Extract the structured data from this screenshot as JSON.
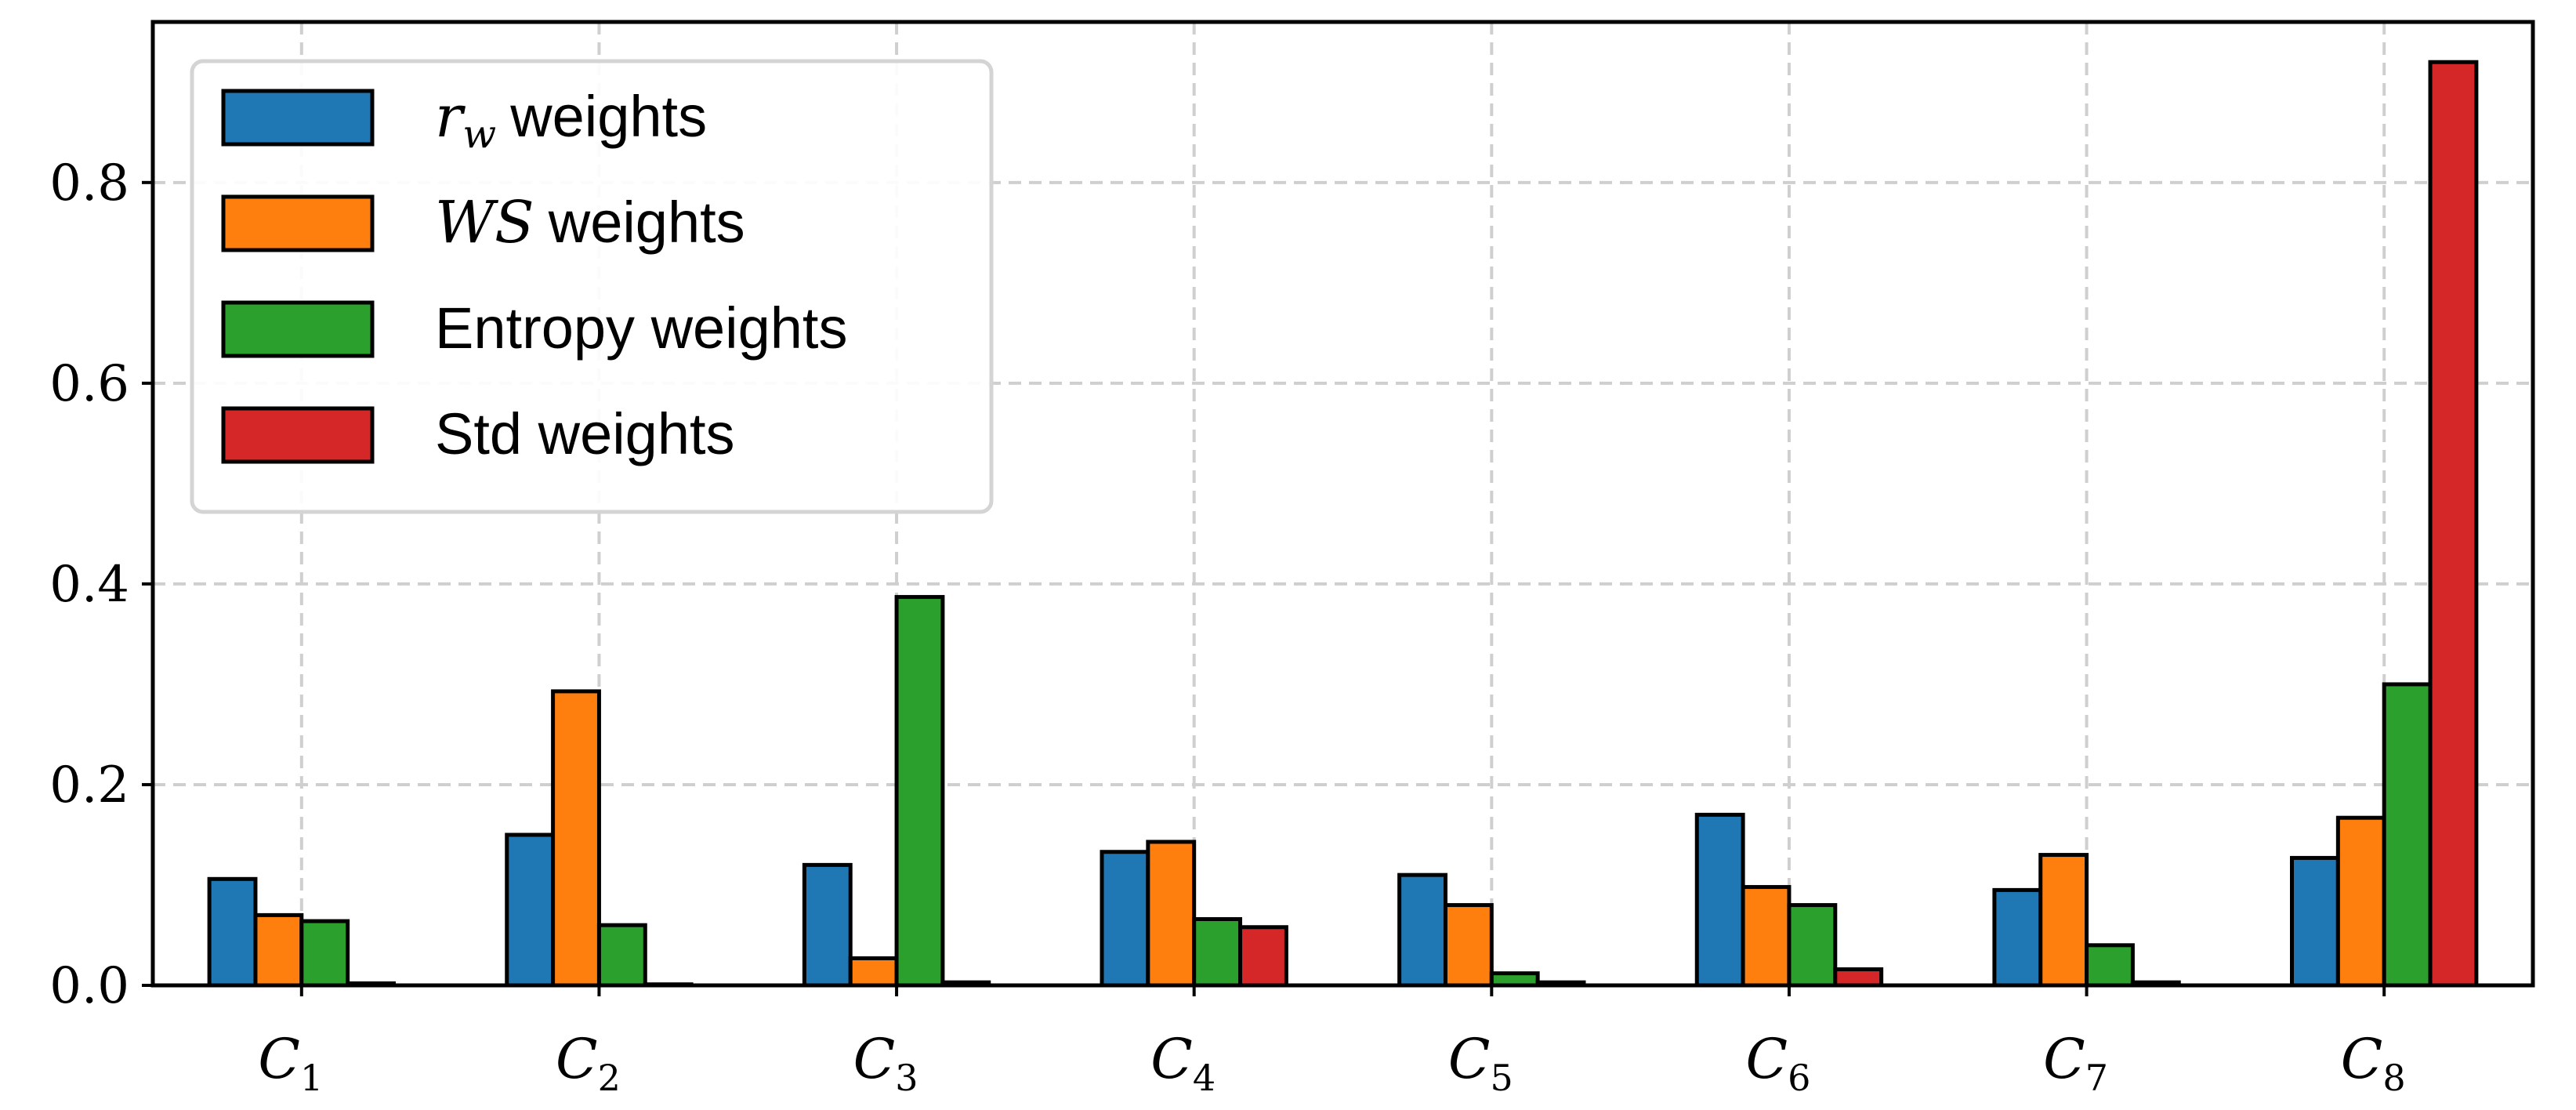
{
  "chart_data": {
    "type": "bar",
    "categories": [
      {
        "base": "C",
        "sub": "1"
      },
      {
        "base": "C",
        "sub": "2"
      },
      {
        "base": "C",
        "sub": "3"
      },
      {
        "base": "C",
        "sub": "4"
      },
      {
        "base": "C",
        "sub": "5"
      },
      {
        "base": "C",
        "sub": "6"
      },
      {
        "base": "C",
        "sub": "7"
      },
      {
        "base": "C",
        "sub": "8"
      }
    ],
    "series": [
      {
        "name": "weights",
        "math": "r",
        "math_sub": "w",
        "color": "#1f77b4",
        "values": [
          0.106,
          0.15,
          0.12,
          0.133,
          0.11,
          0.17,
          0.095,
          0.127
        ]
      },
      {
        "name": "weights",
        "math": "WS",
        "math_sub": "",
        "color": "#ff7f0e",
        "values": [
          0.07,
          0.293,
          0.027,
          0.143,
          0.08,
          0.098,
          0.13,
          0.167
        ]
      },
      {
        "name": "Entropy weights",
        "math": "",
        "math_sub": "",
        "color": "#2ca02c",
        "values": [
          0.064,
          0.06,
          0.387,
          0.066,
          0.012,
          0.08,
          0.04,
          0.3
        ]
      },
      {
        "name": "Std weights",
        "math": "",
        "math_sub": "",
        "color": "#d62728",
        "values": [
          0.002,
          0.001,
          0.003,
          0.058,
          0.003,
          0.016,
          0.003,
          0.92
        ]
      }
    ],
    "yticks": [
      "0.0",
      "0.2",
      "0.4",
      "0.6",
      "0.8"
    ],
    "ylim": [
      0,
      0.96
    ],
    "grid": true,
    "legend_position": "top-left",
    "title": "",
    "xlabel": "",
    "ylabel": ""
  }
}
